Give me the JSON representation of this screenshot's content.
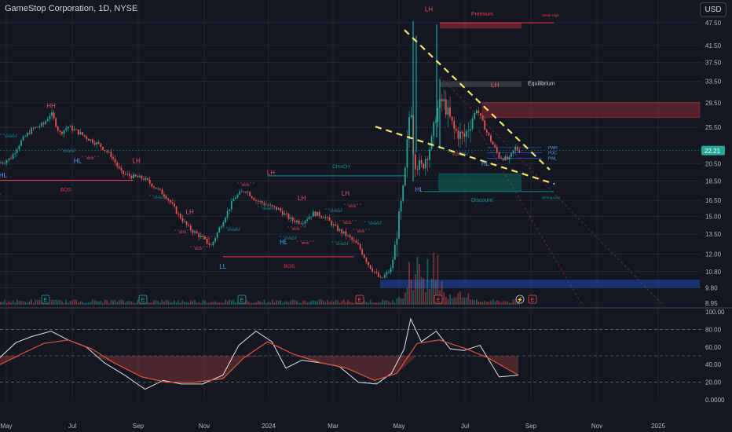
{
  "title": "GameStop Corporation, 1D, NYSE",
  "currency_button": "USD",
  "price_badge": "22.21",
  "colors": {
    "up": "#26a69a",
    "down": "#ef5350",
    "bg": "#131722",
    "grid": "#2a2e39",
    "axis_text": "#b2b5be",
    "premium": "#f23645",
    "discount": "#089981",
    "hl_blue": "#2962ff",
    "trend": "#f5e66b",
    "rsi": "#e0e3eb",
    "rsi_ma": "#e0533a",
    "eq_line": "#5d606b"
  },
  "chart_data": [
    {
      "type": "candlestick",
      "title": "GameStop Corporation, 1D, NYSE",
      "price_axis_ticks": [
        "47.50",
        "41.50",
        "37.50",
        "33.50",
        "29.50",
        "25.50",
        "20.50",
        "18.50",
        "16.50",
        "15.00",
        "13.50",
        "12.00",
        "10.80",
        "9.80",
        "8.95"
      ],
      "price_axis_scale": "log",
      "time_axis_ticks": [
        "May",
        "Jul",
        "Sep",
        "Nov",
        "2024",
        "Mar",
        "May",
        "Jul",
        "Sep",
        "Nov",
        "2025"
      ],
      "last_price": 22.21,
      "series": [
        {
          "name": "close",
          "points": [
            [
              "2023-04-25",
              20.6
            ],
            [
              "2023-05-05",
              21.2
            ],
            [
              "2023-05-15",
              23.5
            ],
            [
              "2023-05-25",
              25.2
            ],
            [
              "2023-06-05",
              26.0
            ],
            [
              "2023-06-12",
              27.8
            ],
            [
              "2023-06-20",
              24.6
            ],
            [
              "2023-06-28",
              25.6
            ],
            [
              "2023-07-07",
              24.8
            ],
            [
              "2023-07-17",
              23.8
            ],
            [
              "2023-07-27",
              23.0
            ],
            [
              "2023-08-07",
              21.6
            ],
            [
              "2023-08-17",
              19.4
            ],
            [
              "2023-08-28",
              19.0
            ],
            [
              "2023-09-07",
              18.8
            ],
            [
              "2023-09-18",
              17.8
            ],
            [
              "2023-09-28",
              16.9
            ],
            [
              "2023-10-09",
              15.2
            ],
            [
              "2023-10-19",
              14.0
            ],
            [
              "2023-10-30",
              13.3
            ],
            [
              "2023-11-09",
              12.6
            ],
            [
              "2023-11-20",
              14.6
            ],
            [
              "2023-12-01",
              16.8
            ],
            [
              "2023-12-11",
              17.6
            ],
            [
              "2023-12-21",
              16.5
            ],
            [
              "2024-01-02",
              16.0
            ],
            [
              "2024-01-12",
              15.6
            ],
            [
              "2024-01-23",
              14.7
            ],
            [
              "2024-02-02",
              14.5
            ],
            [
              "2024-02-13",
              15.3
            ],
            [
              "2024-02-23",
              15.0
            ],
            [
              "2024-03-05",
              14.0
            ],
            [
              "2024-03-15",
              13.4
            ],
            [
              "2024-03-26",
              12.6
            ],
            [
              "2024-04-05",
              11.2
            ],
            [
              "2024-04-16",
              10.3
            ],
            [
              "2024-04-26",
              11.0
            ],
            [
              "2024-05-08",
              18.2
            ],
            [
              "2024-05-14",
              30.5
            ],
            [
              "2024-05-17",
              21.0
            ],
            [
              "2024-05-24",
              20.0
            ],
            [
              "2024-06-03",
              23.5
            ],
            [
              "2024-06-07",
              28.0
            ],
            [
              "2024-06-13",
              30.0
            ],
            [
              "2024-06-24",
              25.0
            ],
            [
              "2024-07-03",
              24.0
            ],
            [
              "2024-07-15",
              28.5
            ],
            [
              "2024-07-25",
              24.5
            ],
            [
              "2024-08-05",
              21.4
            ],
            [
              "2024-08-14",
              21.0
            ],
            [
              "2024-08-20",
              22.6
            ],
            [
              "2024-08-23",
              22.21
            ]
          ]
        }
      ],
      "annotations": {
        "swing_labels": [
          {
            "text": "HH",
            "date": "2023-06-12",
            "price": 28.6,
            "kind": "high"
          },
          {
            "text": "HL",
            "date": "2023-07-07",
            "price": 20.6,
            "kind": "low"
          },
          {
            "text": "HL",
            "date": "2023-04-28",
            "price": 18.9,
            "kind": "low"
          },
          {
            "text": "NL",
            "date": "2023-04-22",
            "price": 17.1,
            "kind": "low"
          },
          {
            "text": "LH",
            "date": "2023-08-31",
            "price": 20.6,
            "kind": "high"
          },
          {
            "text": "LH",
            "date": "2023-10-20",
            "price": 15.2,
            "kind": "high"
          },
          {
            "text": "LL",
            "date": "2023-11-20",
            "price": 11.0,
            "kind": "low"
          },
          {
            "text": "LH",
            "date": "2024-01-04",
            "price": 19.2,
            "kind": "high"
          },
          {
            "text": "HL",
            "date": "2024-01-16",
            "price": 12.7,
            "kind": "low"
          },
          {
            "text": "LH",
            "date": "2024-02-02",
            "price": 16.5,
            "kind": "high"
          },
          {
            "text": "LH",
            "date": "2024-03-14",
            "price": 17.0,
            "kind": "high"
          },
          {
            "text": "LH",
            "date": "2024-05-31",
            "price": 50.8,
            "kind": "high"
          },
          {
            "text": "LH",
            "date": "2024-08-01",
            "price": 32.4,
            "kind": "high"
          },
          {
            "text": "HL",
            "date": "2024-07-23",
            "price": 20.3,
            "kind": "low"
          },
          {
            "text": "HL",
            "date": "2024-05-22",
            "price": 17.4,
            "kind": "low"
          }
        ],
        "structure_lines": [
          {
            "text": "BOS",
            "date_from": "2023-04-22",
            "date_to": "2023-08-28",
            "price": 18.6,
            "color": "#f23645"
          },
          {
            "text": "BOS",
            "date_from": "2023-11-20",
            "date_to": "2024-03-22",
            "price": 11.8,
            "color": "#f23645"
          },
          {
            "text": "CHoCH",
            "date_from": "2024-01-01",
            "date_to": "2024-05-10",
            "price": 19.1,
            "color": "#089981"
          }
        ],
        "small_labels": [
          "CHoCH",
          "CHoCH",
          "BOS",
          "CHoCH",
          "BOS",
          "BOS",
          "BOS",
          "CHoCH",
          "BOS",
          "CHoCH",
          "CHoCH",
          "BOS",
          "BOS",
          "CHoCH",
          "BOS",
          "BOS",
          "CHoCH",
          "BOS",
          "CHoCH",
          "EQL",
          "EQH"
        ],
        "zones": [
          {
            "text": "Premium",
            "price_top": 47.5,
            "price_bottom": 45.9,
            "color": "#f23645"
          },
          {
            "text": "Equilibrium",
            "price_top": 33.5,
            "price_bottom": 32.4,
            "color": "#5d606b"
          },
          {
            "text": "Discount",
            "price_top": 19.4,
            "price_bottom": 17.4,
            "color": "#089981"
          }
        ],
        "other_labels": [
          "Weak High",
          "Strong Low",
          "PWH",
          "POC",
          "PWL"
        ]
      }
    },
    {
      "type": "line",
      "title": "",
      "y_axis_ticks": [
        "100.00",
        "80.00",
        "60.00",
        "40.00",
        "20.00",
        "0.0000"
      ],
      "ylim": [
        0,
        100
      ],
      "guide_levels": [
        80,
        50,
        20
      ],
      "series": [
        {
          "name": "",
          "points": [
            [
              "2023-04-25",
              48
            ],
            [
              "2023-05-10",
              65
            ],
            [
              "2023-05-25",
              72
            ],
            [
              "2023-06-12",
              78
            ],
            [
              "2023-06-28",
              68
            ],
            [
              "2023-07-15",
              60
            ],
            [
              "2023-08-01",
              42
            ],
            [
              "2023-08-20",
              28
            ],
            [
              "2023-09-08",
              12
            ],
            [
              "2023-09-25",
              22
            ],
            [
              "2023-10-12",
              18
            ],
            [
              "2023-11-01",
              18
            ],
            [
              "2023-11-20",
              28
            ],
            [
              "2023-12-05",
              62
            ],
            [
              "2023-12-21",
              78
            ],
            [
              "2024-01-05",
              66
            ],
            [
              "2024-01-18",
              36
            ],
            [
              "2024-02-02",
              45
            ],
            [
              "2024-02-20",
              42
            ],
            [
              "2024-03-08",
              38
            ],
            [
              "2024-03-26",
              20
            ],
            [
              "2024-04-12",
              18
            ],
            [
              "2024-04-26",
              30
            ],
            [
              "2024-05-08",
              58
            ],
            [
              "2024-05-14",
              92
            ],
            [
              "2024-05-24",
              66
            ],
            [
              "2024-06-07",
              78
            ],
            [
              "2024-06-20",
              58
            ],
            [
              "2024-07-03",
              56
            ],
            [
              "2024-07-18",
              62
            ],
            [
              "2024-08-05",
              26
            ],
            [
              "2024-08-23",
              28
            ]
          ]
        },
        {
          "name": "",
          "points": [
            [
              "2023-04-25",
              40
            ],
            [
              "2023-05-15",
              52
            ],
            [
              "2023-06-05",
              64
            ],
            [
              "2023-06-28",
              68
            ],
            [
              "2023-07-20",
              58
            ],
            [
              "2023-08-10",
              42
            ],
            [
              "2023-09-05",
              26
            ],
            [
              "2023-09-28",
              20
            ],
            [
              "2023-10-25",
              20
            ],
            [
              "2023-11-20",
              24
            ],
            [
              "2023-12-10",
              48
            ],
            [
              "2024-01-01",
              66
            ],
            [
              "2024-01-25",
              52
            ],
            [
              "2024-02-20",
              42
            ],
            [
              "2024-03-15",
              36
            ],
            [
              "2024-04-10",
              22
            ],
            [
              "2024-05-01",
              30
            ],
            [
              "2024-05-20",
              64
            ],
            [
              "2024-06-10",
              68
            ],
            [
              "2024-07-05",
              58
            ],
            [
              "2024-07-25",
              48
            ],
            [
              "2024-08-23",
              28
            ]
          ]
        }
      ]
    }
  ]
}
